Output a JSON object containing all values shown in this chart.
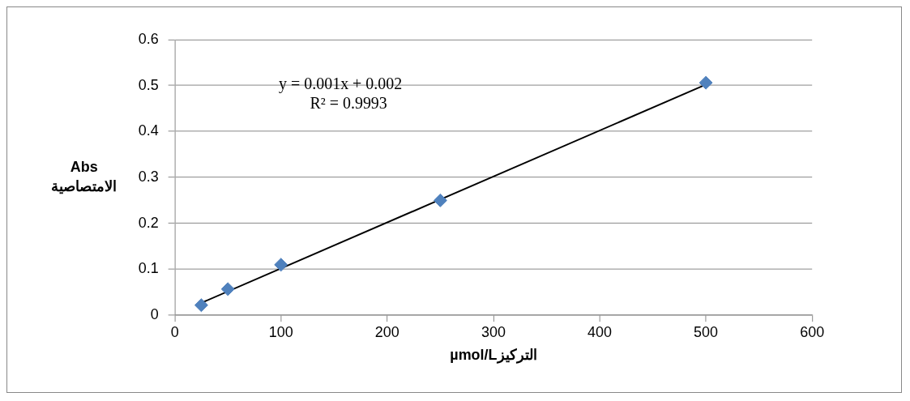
{
  "chart_data": {
    "type": "scatter",
    "xlabel": "µmol/Lالتركيز",
    "ylabel": "Abs\nالامتصاصية",
    "x": [
      25,
      50,
      100,
      250,
      500
    ],
    "series": [
      {
        "color": "#4f81bd",
        "values": [
          0.022,
          0.057,
          0.11,
          0.25,
          0.506
        ],
        "marker": "diamond"
      },
      {
        "type": "line",
        "color": "#000000",
        "x": [
          25,
          500
        ],
        "values": [
          0.027,
          0.502
        ],
        "marker": "none"
      }
    ],
    "annotations": [
      "y = 0.001x + 0.002\nR² = 0.9993"
    ],
    "xlim": [
      0,
      600
    ],
    "xticks": [
      0,
      100,
      200,
      300,
      400,
      500,
      600
    ],
    "ylim": [
      0,
      0.6
    ],
    "yticks": [
      0,
      0.1,
      0.2,
      0.3,
      0.4,
      0.5,
      0.6
    ],
    "grid": "y",
    "legend": false
  }
}
